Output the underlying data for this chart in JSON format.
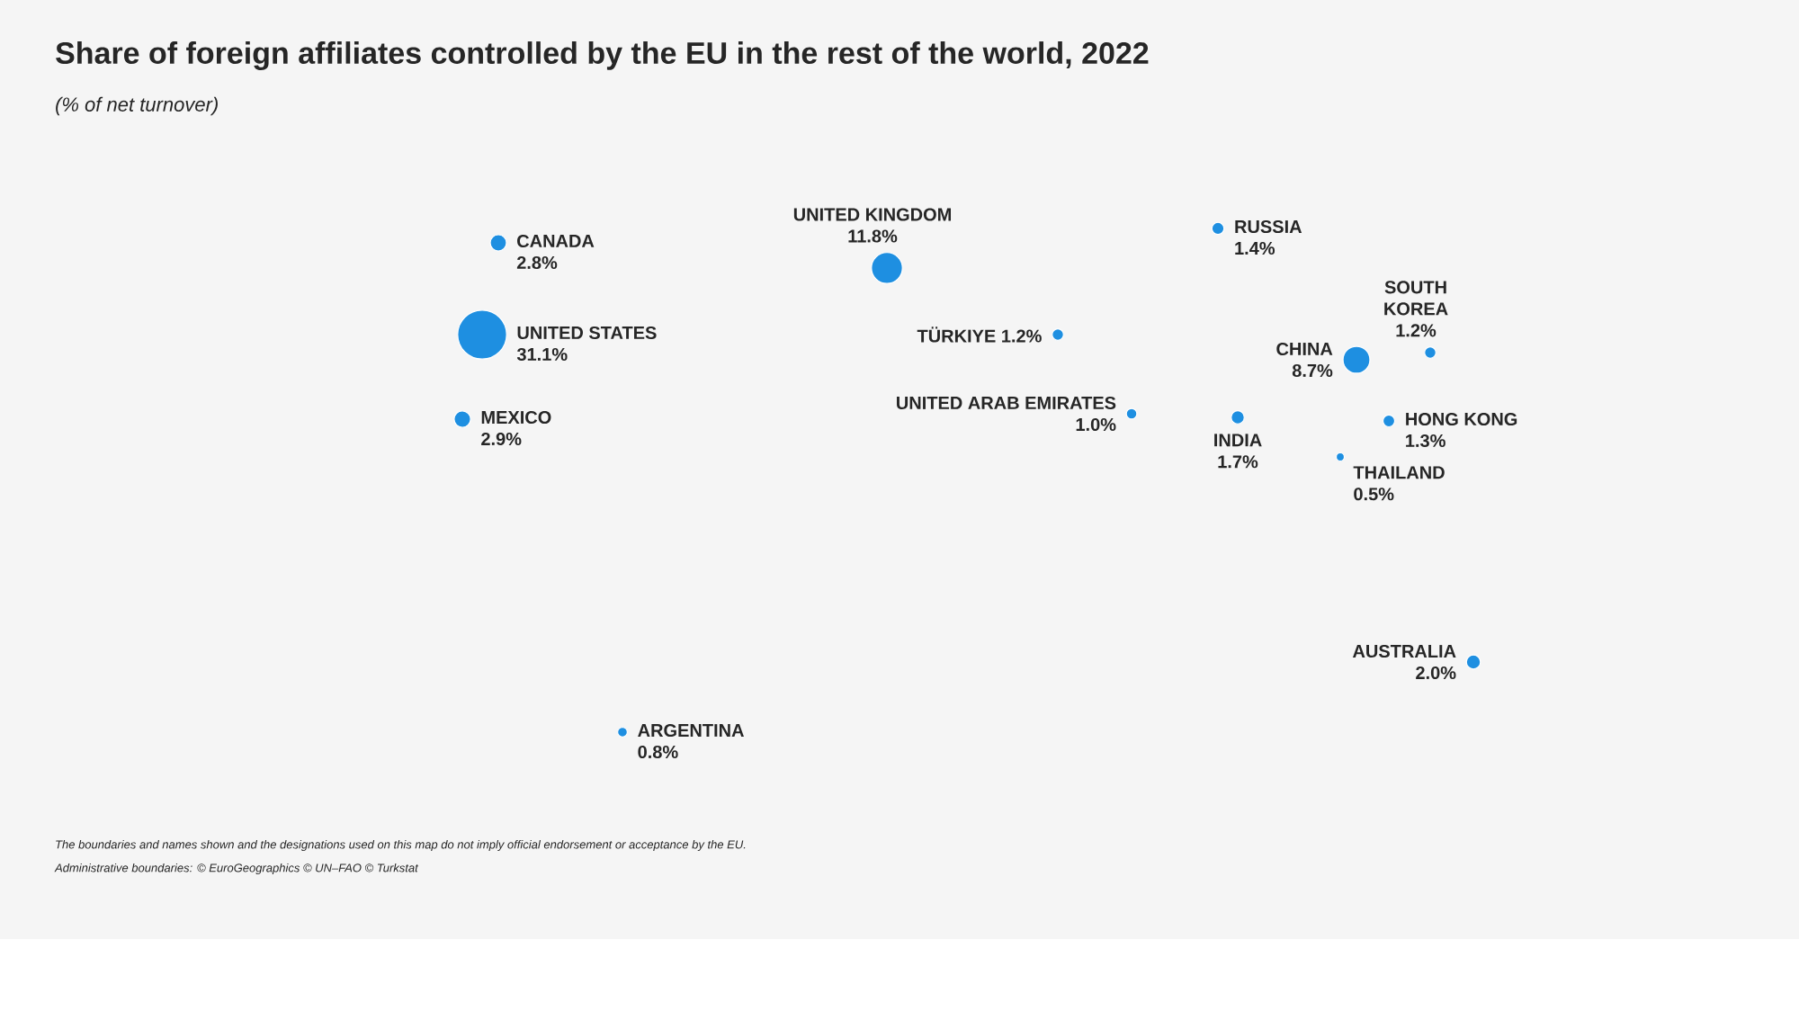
{
  "chart_data": {
    "type": "other",
    "title": "Share of  foreign affiliates controlled by the EU in the rest of the world, 2022",
    "subtitle": "(% of net turnover)",
    "categories": [
      "UNITED KINGDOM",
      "RUSSIA",
      "CANADA",
      "UNITED STATES",
      "MEXICO",
      "TÜRKIYE",
      "CHINA",
      "SOUTH KOREA",
      "UNITED ARAB EMIRATES",
      "INDIA",
      "HONG KONG",
      "THAILAND",
      "AUSTRALIA",
      "ARGENTINA"
    ],
    "values": [
      11.8,
      1.4,
      2.8,
      31.1,
      2.9,
      1.2,
      8.7,
      1.2,
      1.0,
      1.7,
      1.3,
      0.5,
      2.0,
      0.8
    ],
    "value_labels": [
      "11.8%",
      "1.4%",
      "2.8%",
      "31.1%",
      "2.9%",
      "1.2%",
      "8.7%",
      "1.2%",
      "1.0%",
      "1.7%",
      "1.3%",
      "0.5%",
      "2.0%",
      "0.8%"
    ],
    "color": "#1e8fe1",
    "annotations": [
      "The boundaries and names shown and the designations used on this map do not imply official endorsement or acceptance by the EU.",
      "Administrative boundaries: © EuroGeographics © UN–FAO © Turkstat"
    ]
  }
}
